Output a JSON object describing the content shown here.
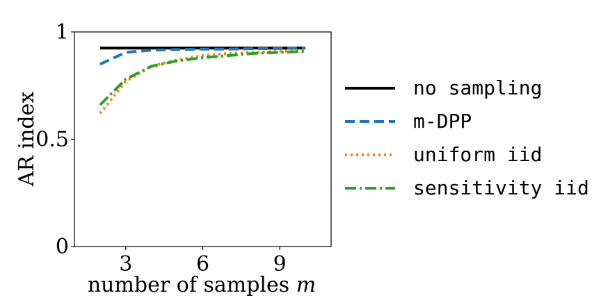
{
  "chart_data": {
    "type": "line",
    "xlabel": "number of samples",
    "xlabel_var": "m",
    "ylabel": "AR index",
    "xlim": [
      1,
      11
    ],
    "ylim": [
      0,
      1
    ],
    "xticks": [
      3,
      6,
      9
    ],
    "yticks": [
      {
        "value": 0,
        "label": "0"
      },
      {
        "value": 0.5,
        "label": "0.5"
      },
      {
        "value": 1,
        "label": "1"
      }
    ],
    "x": [
      2,
      3,
      4,
      5,
      6,
      7,
      8,
      9,
      10
    ],
    "grid": false,
    "legend_position": "right",
    "series": [
      {
        "name": "no sampling",
        "color": "#000000",
        "dash": "solid",
        "values": [
          0.925,
          0.925,
          0.925,
          0.925,
          0.925,
          0.925,
          0.925,
          0.925,
          0.925
        ]
      },
      {
        "name": "m-DPP",
        "color": "#1f77b4",
        "dash": "dashed",
        "values": [
          0.85,
          0.905,
          0.915,
          0.918,
          0.92,
          0.92,
          0.922,
          0.923,
          0.925
        ]
      },
      {
        "name": "uniform iid",
        "color": "#ff7f0e",
        "dash": "dotted",
        "values": [
          0.62,
          0.77,
          0.84,
          0.87,
          0.89,
          0.9,
          0.905,
          0.91,
          0.915
        ]
      },
      {
        "name": "sensitivity iid",
        "color": "#2ca02c",
        "dash": "dashdot",
        "values": [
          0.66,
          0.78,
          0.84,
          0.865,
          0.88,
          0.89,
          0.9,
          0.905,
          0.91
        ]
      }
    ]
  }
}
